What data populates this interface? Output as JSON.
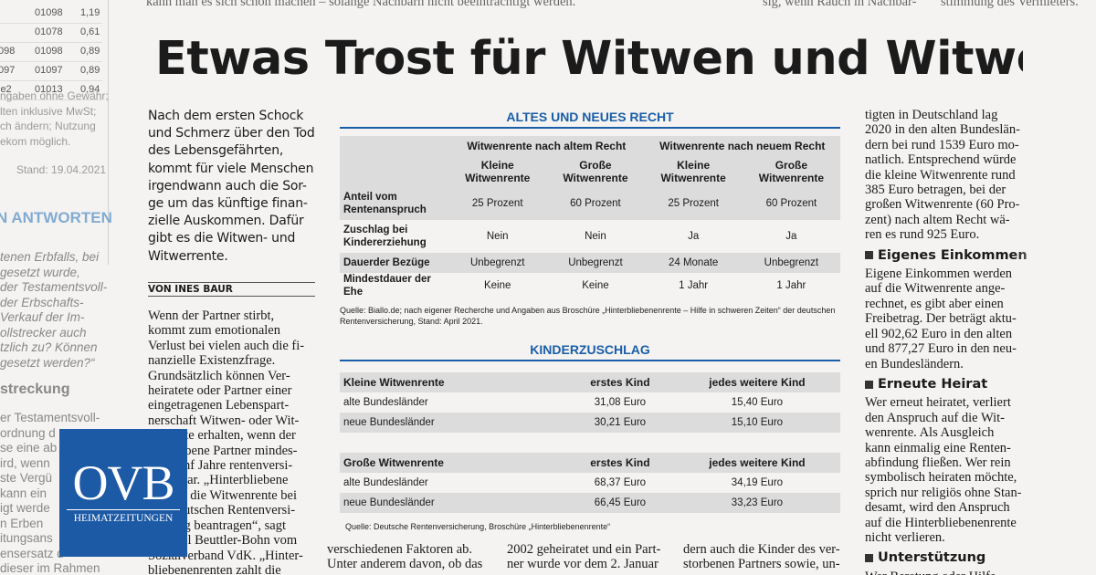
{
  "top_strip": [
    "kann man es sich schon machen – solange Nachbarn nicht beeinträchtigt werden.",
    "sig, wenn Rauch in Nachbar-",
    "stimmung des Vermieters."
  ],
  "left_strip": {
    "rows": [
      [
        "01098",
        "1,19"
      ],
      [
        "01078",
        "0,61"
      ],
      [
        "098",
        "01098",
        "0,89"
      ],
      [
        "097",
        "01097",
        "0,89"
      ],
      [
        "le2",
        "01013",
        "0,94"
      ]
    ],
    "notes": [
      "ngaben ohne Gewähr;",
      "lten inklusive MwSt;",
      "ch ändern; Nutzung",
      "ekom möglich."
    ],
    "stand": "Stand: 19.04.2021",
    "heading": "N ANTWORTEN",
    "question": [
      "tenen Erbfalls, bei",
      "gesetzt wurde,",
      "der Testamentsvoll-",
      "der Erbschafts-",
      "Verkauf der Im-",
      "ollstrecker auch",
      "tzlich zu? Können",
      "gesetzt werden?“"
    ],
    "heading2": "streckung",
    "answer": [
      "er Testamentsvoll-",
      "ordnung d",
      "se eine ab",
      "ird, wenn",
      "ste Vergü",
      "kann ein",
      "igt werde",
      "n Erben",
      "itungsans",
      "ensersatz d",
      "dieser im Rahmen"
    ]
  },
  "article": {
    "headline": "Etwas Trost für Witwen und Witwer",
    "lead": [
      "Nach dem ersten Schock",
      "und Schmerz über den Tod",
      "des Lebensgefährten,",
      "kommt für viele Menschen",
      "irgendwann auch die Sor-",
      "ge um das künftige finan-",
      "zielle Auskommen. Dafür",
      "gibt es die Witwen- und",
      "Witwerrente."
    ],
    "byline": "VON INES BAUR",
    "body": [
      "Wenn der Partner stirbt,",
      "kommt zum emotionalen",
      "Verlust bei vielen auch die fi-",
      "nanzielle Existenzfrage.",
      "Grundsätzlich können Ver-",
      "heiratete oder Partner einer",
      "eingetragenen Lebenspart-",
      "nerschaft Witwen- oder Wit-",
      "werrente erhalten, wenn der",
      "verstorbene Partner mindes-",
      "tens fünf Jahre rentenversi-",
      "chert war. „Hinterbliebene",
      "können die Witwenrente bei",
      "der Deutschen Rentenversi-",
      "cherung beantragen“, sagt",
      "Michael Beuttler-Bohn vom",
      "Sozialverband VdK. „Hinter-",
      "bliebenenrenten zahlt die"
    ],
    "bottom_columns": [
      [
        "verschiedenen Faktoren ab.",
        "Unter anderem davon, ob das"
      ],
      [
        "2002 geheiratet und ein Part-",
        "ner wurde vor dem 2. Januar"
      ],
      [
        "dern auch die Kinder des ver-",
        "storbenen Partners sowie, un-"
      ]
    ],
    "right_column": [
      {
        "text": [
          "tigten in Deutschland lag",
          "2020 in den alten Bundeslän-",
          "dern bei rund 1539 Euro mo-",
          "natlich. Entsprechend würde",
          "die kleine Witwenrente rund",
          "385 Euro betragen, bei der",
          "großen Witwenrente (60 Pro-",
          "zent) nach altem Recht wä-",
          "ren es rund 925 Euro."
        ]
      },
      {
        "heading": "Eigenes Einkommen",
        "text": [
          "Eigene Einkommen werden",
          "auf die Witwenrente ange-",
          "rechnet, es gibt aber einen",
          "Freibetrag. Der beträgt aktu-",
          "ell 902,62 Euro in den alten",
          "und 877,27 Euro in den neu-",
          "en Bundesländern."
        ]
      },
      {
        "heading": "Erneute Heirat",
        "text": [
          "Wer erneut heiratet, verliert",
          "den Anspruch auf die Wit-",
          "wenrente. Als Ausgleich",
          "kann einmalig eine Renten-",
          "abfindung fließen. Wer rein",
          "symbolisch heiraten möchte,",
          "sprich nur religiös ohne Stan-",
          "desamt, wird den Anspruch",
          "auf die Hinterbliebenenrente",
          "nicht verlieren."
        ]
      },
      {
        "heading": "Unterstützung",
        "text": [
          "Wer Beratung oder Hilfe"
        ]
      }
    ]
  },
  "table": {
    "title": "ALTES UND NEUES RECHT",
    "groups": [
      "Witwenrente nach altem Recht",
      "Witwenrente nach neuem Recht"
    ],
    "columns": [
      "Kleine Witwenrente",
      "Große Witwenrente",
      "Kleine Witwenrente",
      "Große Witwenrente"
    ],
    "rows": [
      [
        "Anteil vom Rentenanspruch",
        "25 Prozent",
        "60 Prozent",
        "25 Prozent",
        "60 Prozent"
      ],
      [
        "Zuschlag bei Kindererziehung",
        "Nein",
        "Nein",
        "Ja",
        "Ja"
      ],
      [
        "Dauerder Bezüge",
        "Unbegrenzt",
        "Unbegrenzt",
        "24 Monate",
        "Unbegrenzt"
      ],
      [
        "Mindestdauer der Ehe",
        "Keine",
        "Keine",
        "1 Jahr",
        "1 Jahr"
      ]
    ],
    "source": "Quelle: Biallo.de; nach eigener Recherche und Angaben aus Broschüre „Hinterbliebenenrente – Hilfe in schweren Zeiten“ der deutschen Rentenversicherung, Stand: April 2021."
  },
  "kinderzuschlag": {
    "title": "KINDERZUSCHLAG",
    "tables": [
      {
        "header": [
          "Kleine Witwenrente",
          "erstes Kind",
          "jedes weitere Kind"
        ],
        "rows": [
          [
            "alte Bundesländer",
            "31,08 Euro",
            "15,40 Euro"
          ],
          [
            "neue Bundesländer",
            "30,21 Euro",
            "15,10 Euro"
          ]
        ]
      },
      {
        "header": [
          "Große Witwenrente",
          "erstes Kind",
          "jedes weitere Kind"
        ],
        "rows": [
          [
            "alte Bundesländer",
            "68,37 Euro",
            "34,19 Euro"
          ],
          [
            "neue Bundesländer",
            "66,45 Euro",
            "33,23 Euro"
          ]
        ]
      }
    ],
    "source": "Quelle: Deutsche Rentenversicherung, Broschüre „Hinterbliebenenrente“"
  },
  "logo": {
    "name": "OVB",
    "tagline": "HEIMATZEITUNGEN"
  }
}
